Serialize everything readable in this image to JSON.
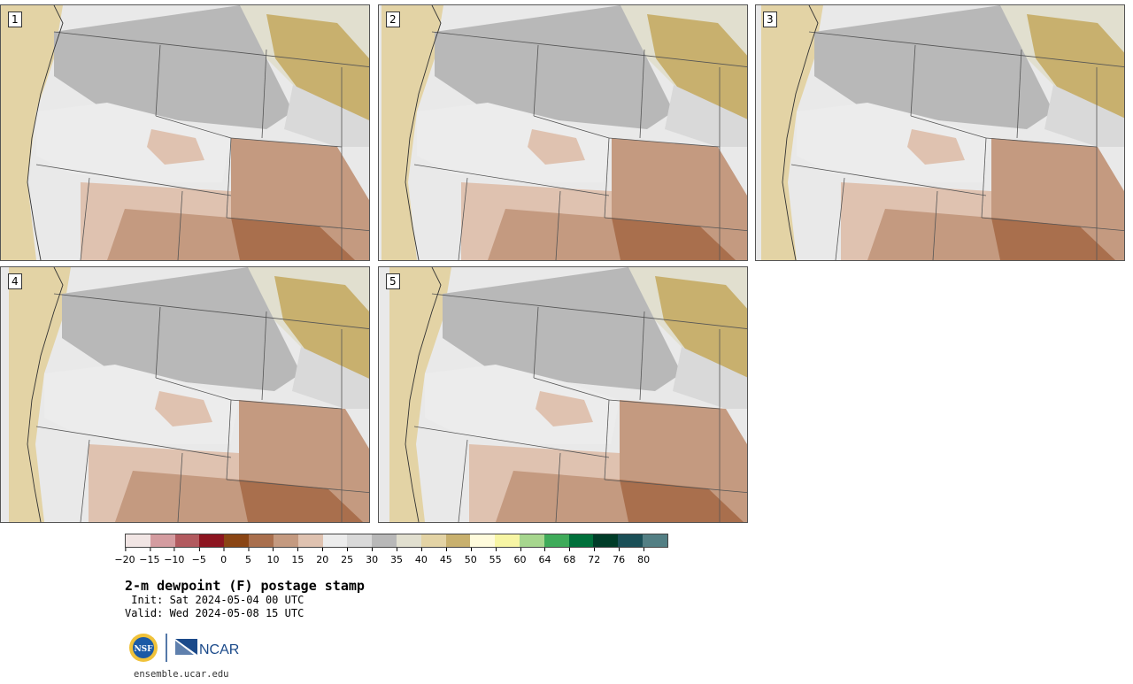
{
  "panels": [
    {
      "label": "1"
    },
    {
      "label": "2"
    },
    {
      "label": "3"
    },
    {
      "label": "4"
    },
    {
      "label": "5"
    }
  ],
  "colorbar": {
    "colors": [
      "#f1e5e4",
      "#d49ca0",
      "#b25a5f",
      "#8c1520",
      "#8a4514",
      "#a96f4d",
      "#c49a80",
      "#dfc2b0",
      "#ececec",
      "#d9d9d9",
      "#b8b8b8",
      "#e1dfcf",
      "#e3d3a5",
      "#c8b06e",
      "#fffbdc",
      "#f7f5a4",
      "#a6d68e",
      "#3fab5a",
      "#00703b",
      "#003c28",
      "#1a4f57",
      "#537f84"
    ],
    "tick_labels": [
      "−20",
      "−15",
      "−10",
      "−5",
      "0",
      "5",
      "10",
      "15",
      "20",
      "25",
      "30",
      "35",
      "40",
      "45",
      "50",
      "55",
      "60",
      "64",
      "68",
      "72",
      "76",
      "80"
    ]
  },
  "title": "2-m dewpoint (F) postage stamp",
  "init": " Init: Sat 2024-05-04 00 UTC",
  "valid": "Valid: Wed 2024-05-08 15 UTC",
  "logos": {
    "left": "NSF",
    "right": "NCAR"
  },
  "site": "ensemble.ucar.edu"
}
